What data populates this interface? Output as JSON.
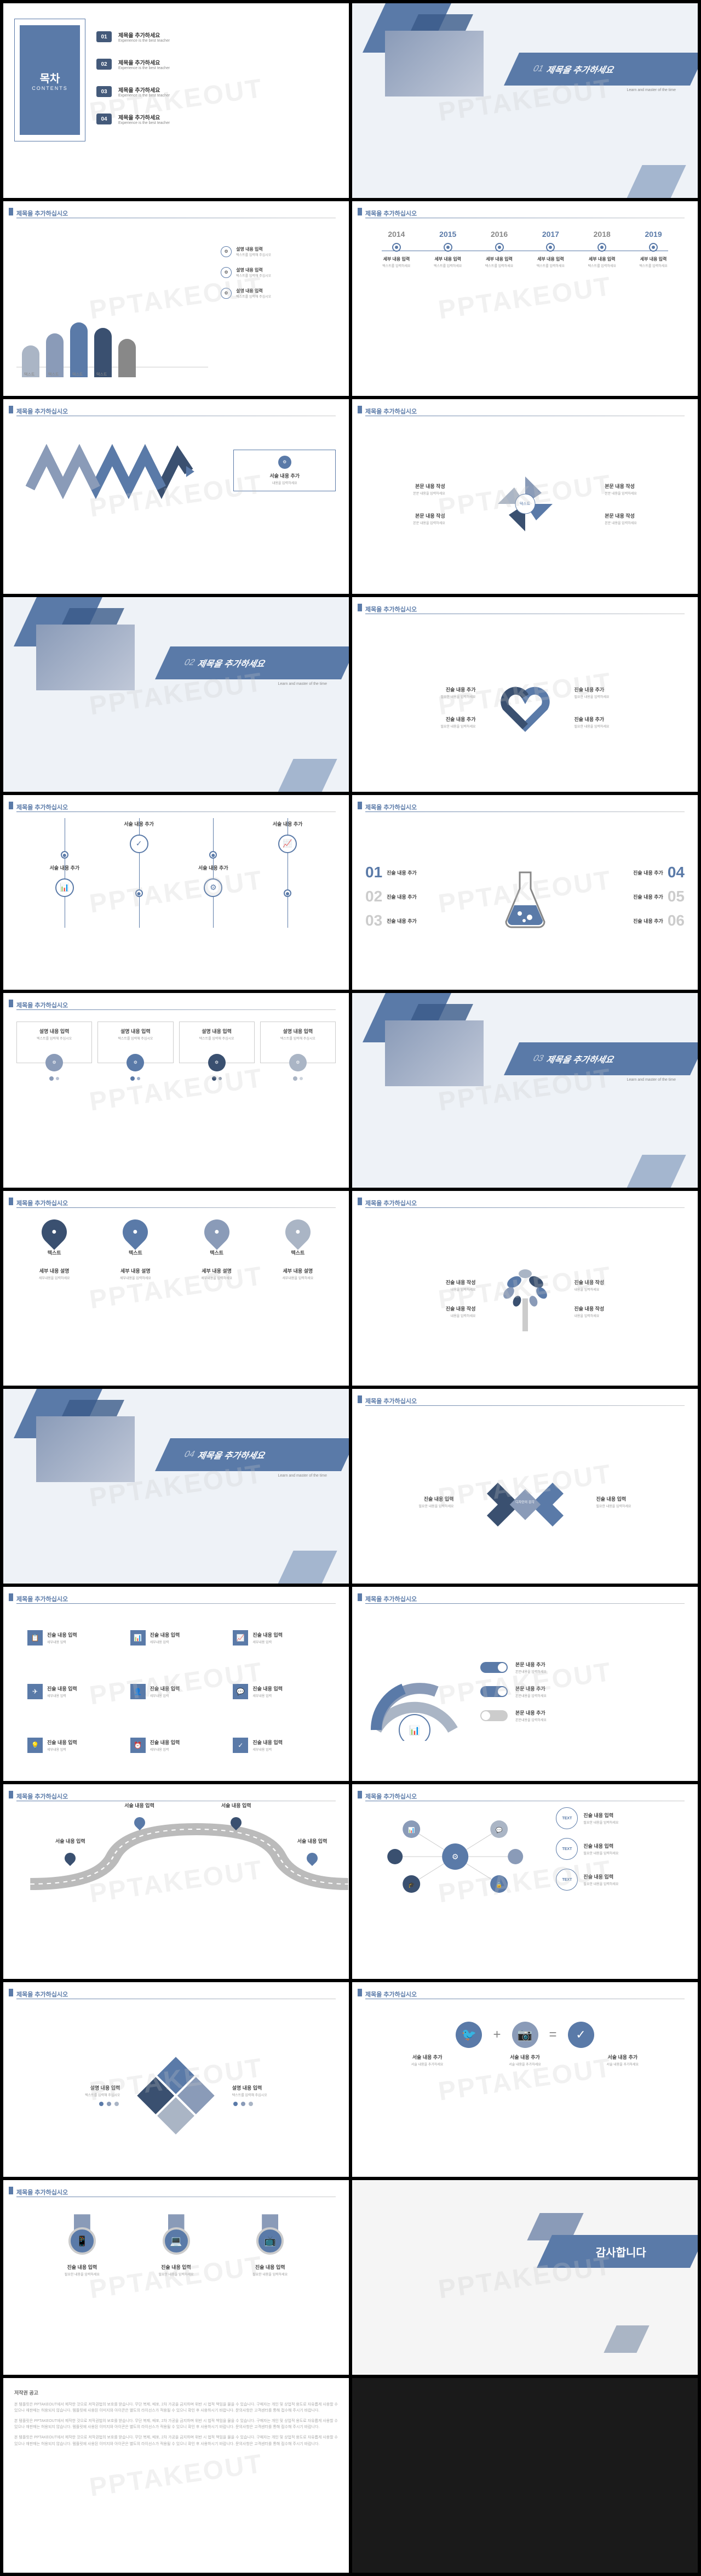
{
  "watermark": "PPTAKEOUT",
  "colors": {
    "primary": "#5a7aa8",
    "secondary": "#8a9bb8",
    "dark": "#3a5070",
    "light": "#aab5c5",
    "gray": "#888888",
    "bg": "#ffffff"
  },
  "header": "제목을 추가하십시오",
  "toc": {
    "title": "목차",
    "subtitle": "CONTENTS",
    "items": [
      {
        "num": "01",
        "title": "제목을 추가하세요",
        "sub": "Experience is the best teacher"
      },
      {
        "num": "02",
        "title": "제목을 추가하세요",
        "sub": "Experience is the best teacher"
      },
      {
        "num": "03",
        "title": "제목을 추가하세요",
        "sub": "Experience is the best teacher"
      },
      {
        "num": "04",
        "title": "제목을 추가하세요",
        "sub": "Experience is the best teacher"
      }
    ]
  },
  "sections": [
    {
      "num": "01",
      "title": "제목을 추가하세요",
      "sub": "Learn and master of the time"
    },
    {
      "num": "02",
      "title": "제목을 추가하세요",
      "sub": "Learn and master of the time"
    },
    {
      "num": "03",
      "title": "제목을 추가하세요",
      "sub": "Learn and master of the time"
    },
    {
      "num": "04",
      "title": "제목을 추가하세요",
      "sub": "Learn and master of the time"
    }
  ],
  "chart": {
    "bars": [
      {
        "v": 58,
        "c": "#aab5c5",
        "lbl": "텍스트"
      },
      {
        "v": 80,
        "c": "#8a9bb8",
        "lbl": "텍스트"
      },
      {
        "v": 100,
        "c": "#5a7aa8",
        "lbl": "텍스트"
      },
      {
        "v": 90,
        "c": "#3a5070",
        "lbl": "텍스트"
      },
      {
        "v": 70,
        "c": "#888888",
        "lbl": "텍스트"
      }
    ],
    "legend": [
      {
        "t1": "설명 내용 입력",
        "t2": "텍스트를 입력해 주십시오"
      },
      {
        "t1": "설명 내용 입력",
        "t2": "텍스트를 입력해 주십시오"
      },
      {
        "t1": "설명 내용 입력",
        "t2": "텍스트를 입력해 주십시오"
      }
    ]
  },
  "timeline": {
    "years": [
      "2014",
      "2015",
      "2016",
      "2017",
      "2018",
      "2019"
    ],
    "t1": "세부 내용 입력",
    "t2": "텍스트를 입력하세요"
  },
  "zigzag": {
    "colors": [
      "#aab5c5",
      "#8a9bb8",
      "#5a7aa8",
      "#3a5070",
      "#2a4060"
    ],
    "box_t1": "서술 내용 추가",
    "box_t2": "내용을 입력하세요"
  },
  "pinwheel": {
    "items": [
      {
        "t1": "본문 내용 작성",
        "t2": "본문 내용을 입력하세요",
        "c": "#8a9bb8"
      },
      {
        "t1": "본문 내용 작성",
        "t2": "본문 내용을 입력하세요",
        "c": "#5a7aa8"
      },
      {
        "t1": "본문 내용 작성",
        "t2": "본문 내용을 입력하세요",
        "c": "#3a5070"
      },
      {
        "t1": "본문 내용 작성",
        "t2": "본문 내용을 입력하세요",
        "c": "#aab5c5"
      }
    ],
    "center": "텍스트"
  },
  "heart": {
    "items": [
      {
        "t1": "진술 내용 추가",
        "t2": "필요한 내용을 입력하세요"
      },
      {
        "t1": "진술 내용 추가",
        "t2": "필요한 내용을 입력하세요"
      },
      {
        "t1": "진술 내용 추가",
        "t2": "필요한 내용을 입력하세요"
      },
      {
        "t1": "진술 내용 추가",
        "t2": "필요한 내용을 입력하세요"
      }
    ]
  },
  "vtimeline": {
    "nodes": [
      "📊",
      "✓",
      "⚙",
      "📈"
    ],
    "t1": "서술 내용 추가",
    "t2": "세부내용"
  },
  "flask": {
    "left": [
      {
        "num": "01",
        "t": "진술 내용 추가"
      },
      {
        "num": "02",
        "t": "진술 내용 추가"
      },
      {
        "num": "03",
        "t": "진술 내용 추가"
      }
    ],
    "right": [
      {
        "num": "04",
        "t": "진술 내용 추가"
      },
      {
        "num": "05",
        "t": "진술 내용 추가"
      },
      {
        "num": "06",
        "t": "진술 내용 추가"
      }
    ]
  },
  "cards4": {
    "items": [
      {
        "t1": "설명 내용 입력",
        "t2": "텍스트를 입력해 주십시오",
        "c": "#8a9bb8"
      },
      {
        "t1": "설명 내용 입력",
        "t2": "텍스트를 입력해 주십시오",
        "c": "#5a7aa8"
      },
      {
        "t1": "설명 내용 입력",
        "t2": "텍스트를 입력해 주십시오",
        "c": "#3a5070"
      },
      {
        "t1": "설명 내용 입력",
        "t2": "텍스트를 입력해 주십시오",
        "c": "#aab5c5"
      }
    ]
  },
  "drops": {
    "items": [
      {
        "ico": "💧",
        "lbl": "텍스트",
        "c": "#3a5070"
      },
      {
        "ico": "💧",
        "lbl": "텍스트",
        "c": "#5a7aa8"
      },
      {
        "ico": "💧",
        "lbl": "텍스트",
        "c": "#8a9bb8"
      },
      {
        "ico": "💧",
        "lbl": "텍스트",
        "c": "#aab5c5"
      }
    ],
    "t1": "세부 내용 설명",
    "t2": "세부내용을 입력하세요"
  },
  "tree": {
    "items": [
      {
        "t1": "진술 내용 작성",
        "t2": "내용을 입력하세요"
      },
      {
        "t1": "진술 내용 작성",
        "t2": "내용을 입력하세요"
      },
      {
        "t1": "진술 내용 작성",
        "t2": "내용을 입력하세요"
      },
      {
        "t1": "진술 내용 작성",
        "t2": "내용을 입력하세요"
      }
    ]
  },
  "ribbons": {
    "center": "디자인의 감각",
    "left": {
      "t1": "진술 내용 입력",
      "t2": "필요한 내용을 입력하세요"
    },
    "right": {
      "t1": "진술 내용 입력",
      "t2": "필요한 내용을 입력하세요"
    }
  },
  "icongrid": {
    "items": [
      {
        "ico": "📋",
        "t1": "진술 내용 입력",
        "t2": "세부내용 입력"
      },
      {
        "ico": "📊",
        "t1": "진술 내용 입력",
        "t2": "세부내용 입력"
      },
      {
        "ico": "📈",
        "t1": "진술 내용 입력",
        "t2": "세부내용 입력"
      },
      {
        "ico": "✈",
        "t1": "진술 내용 입력",
        "t2": "세부내용 입력"
      },
      {
        "ico": "👤",
        "t1": "진술 내용 입력",
        "t2": "세부내용 입력"
      },
      {
        "ico": "💬",
        "t1": "진술 내용 입력",
        "t2": "세부내용 입력"
      },
      {
        "ico": "💡",
        "t1": "진술 내용 입력",
        "t2": "세부내용 입력"
      },
      {
        "ico": "⏰",
        "t1": "진술 내용 입력",
        "t2": "세부내용 입력"
      },
      {
        "ico": "✓",
        "t1": "진술 내용 입력",
        "t2": "세부내용 입력"
      }
    ]
  },
  "arc": {
    "items": [
      {
        "t1": "본문 내용 추가",
        "t2": "본문내용을 입력하세요"
      },
      {
        "t1": "본문 내용 추가",
        "t2": "본문내용을 입력하세요"
      },
      {
        "t1": "본문 내용 추가",
        "t2": "본문내용을 입력하세요"
      }
    ]
  },
  "road": {
    "pins": [
      {
        "t1": "서술 내용 입력",
        "t2": "세부내용"
      },
      {
        "t1": "서술 내용 입력",
        "t2": "세부내용"
      },
      {
        "t1": "서술 내용 입력",
        "t2": "세부내용"
      },
      {
        "t1": "서술 내용 입력",
        "t2": "세부내용"
      }
    ]
  },
  "network": {
    "texts": [
      "TEXT",
      "TEXT",
      "TEXT"
    ],
    "items": [
      {
        "t1": "진술 내용 입력",
        "t2": "필요한 내용을 입력하세요"
      },
      {
        "t1": "진술 내용 입력",
        "t2": "필요한 내용을 입력하세요"
      },
      {
        "t1": "진술 내용 입력",
        "t2": "필요한 내용을 입력하세요"
      }
    ]
  },
  "puzzle": {
    "left": {
      "t1": "설명 내용 입력",
      "t2": "텍스트를 입력해 주십시오"
    },
    "right": {
      "t1": "설명 내용 입력",
      "t2": "텍스트를 입력해 주십시오"
    }
  },
  "social": {
    "items": [
      {
        "ico": "🐦",
        "c": "#5a7aa8",
        "t1": "서술 내용 추가",
        "t2": "서술 내용을 추가하세요"
      },
      {
        "ico": "📷",
        "c": "#8a9bb8",
        "t1": "서술 내용 추가",
        "t2": "서술 내용을 추가하세요"
      },
      {
        "ico": "✓",
        "c": "#5a7aa8",
        "t1": "서술 내용 추가",
        "t2": "서술 내용을 추가하세요"
      }
    ],
    "ops": [
      "+",
      "="
    ]
  },
  "medals": {
    "items": [
      {
        "ico": "📱",
        "t1": "진술 내용 입력",
        "t2": "필요한 내용을 입력하세요"
      },
      {
        "ico": "💻",
        "t1": "진술 내용 입력",
        "t2": "필요한 내용을 입력하세요"
      },
      {
        "ico": "📺",
        "t1": "진술 내용 입력",
        "t2": "필요한 내용을 입력하세요"
      }
    ]
  },
  "thankyou": "감사합니다",
  "copyright": {
    "title": "저작권 공고",
    "body": "본 템플릿은 PPTAKEOUT에서 제작한 것으로 저작권법의 보호를 받습니다. 무단 복제, 배포, 2차 가공을 금지하며 위반 시 법적 책임을 물을 수 있습니다. 구매자는 개인 및 상업적 용도로 자유롭게 사용할 수 있으나 재판매는 허용되지 않습니다. 템플릿에 사용된 이미지와 아이콘은 별도의 라이선스가 적용될 수 있으니 확인 후 사용하시기 바랍니다. 문의사항은 고객센터를 통해 접수해 주시기 바랍니다."
  }
}
